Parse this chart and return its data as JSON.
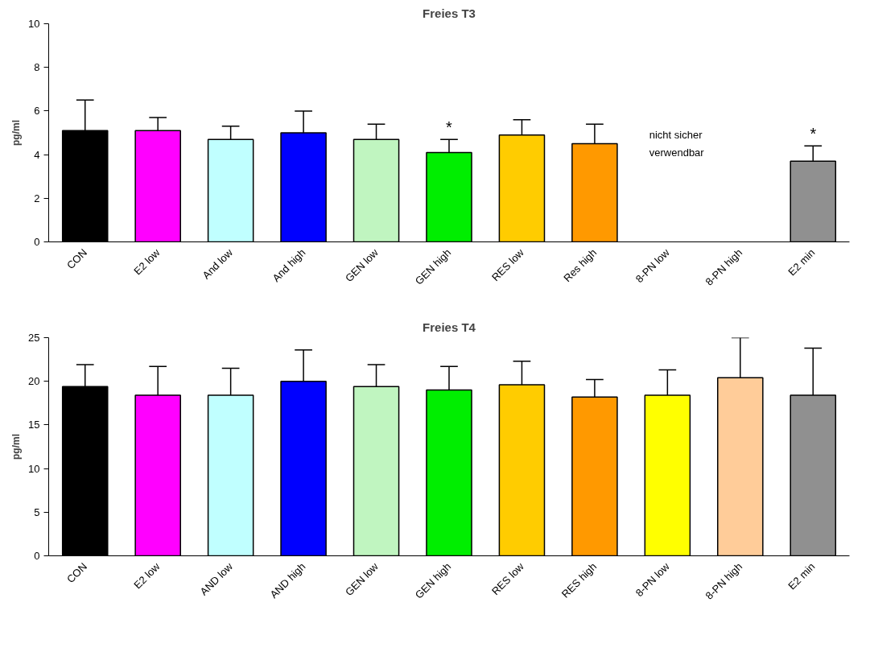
{
  "chart_data": [
    {
      "type": "bar",
      "title": "Freies T3",
      "ylabel": "pg/ml",
      "categories": [
        "CON",
        "E2 low",
        "And low",
        "And high",
        "GEN low",
        "GEN high",
        "RES low",
        "Res high",
        "8-PN low",
        "8-PN high",
        "E2 min"
      ],
      "values": [
        5.1,
        5.1,
        4.7,
        5.0,
        4.7,
        4.1,
        4.9,
        4.5,
        null,
        null,
        3.7
      ],
      "errors": [
        1.4,
        0.6,
        0.6,
        1.0,
        0.7,
        0.6,
        0.7,
        0.9,
        null,
        null,
        0.7
      ],
      "colors": [
        "#000000",
        "#ff00ff",
        "#c0ffff",
        "#0000ff",
        "#c0f5c0",
        "#00ee00",
        "#ffcc00",
        "#ff9900",
        "#ffff00",
        "#ffcc99",
        "#909090"
      ],
      "ylim": [
        0,
        10
      ],
      "yticks": [
        0,
        2,
        4,
        6,
        8,
        10
      ],
      "grid": false,
      "annotations": [
        {
          "text": "*",
          "x": "GEN high",
          "y": 4.7
        },
        {
          "text": "*",
          "x": "E2 min",
          "y": 4.4
        },
        "nicht sicher\nverwendbar"
      ]
    },
    {
      "type": "bar",
      "title": "Freies T4",
      "ylabel": "pg/ml",
      "categories": [
        "CON",
        "E2 low",
        "AND low",
        "AND high",
        "GEN low",
        "GEN high",
        "RES low",
        "RES high",
        "8-PN low",
        "8-PN high",
        "E2 min"
      ],
      "values": [
        19.4,
        18.4,
        18.4,
        20.0,
        19.4,
        19.0,
        19.6,
        18.2,
        18.4,
        20.4,
        18.4
      ],
      "errors": [
        2.5,
        3.3,
        3.1,
        3.6,
        2.5,
        2.7,
        2.7,
        2.0,
        2.9,
        4.6,
        5.4
      ],
      "colors": [
        "#000000",
        "#ff00ff",
        "#c0ffff",
        "#0000ff",
        "#c0f5c0",
        "#00ee00",
        "#ffcc00",
        "#ff9900",
        "#ffff00",
        "#ffcc99",
        "#909090"
      ],
      "ylim": [
        0,
        25
      ],
      "yticks": [
        0,
        5,
        10,
        15,
        20,
        25
      ],
      "grid": false
    }
  ]
}
